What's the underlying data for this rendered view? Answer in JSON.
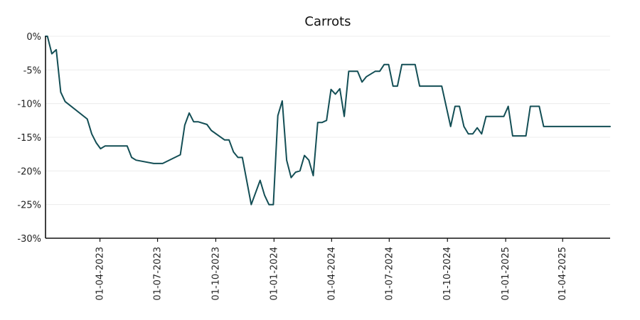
{
  "chart_data": {
    "type": "line",
    "title": "Carrots",
    "xlabel": "",
    "ylabel": "",
    "x_axis": {
      "type": "date",
      "range": [
        "2023-01-05",
        "2025-06-15"
      ],
      "ticks": [
        "2023-04-01",
        "2023-07-01",
        "2023-10-01",
        "2024-01-01",
        "2024-04-01",
        "2024-07-01",
        "2024-10-01",
        "2025-01-01",
        "2025-04-01"
      ],
      "tick_labels": [
        "01-04-2023",
        "01-07-2023",
        "01-10-2023",
        "01-01-2024",
        "01-04-2024",
        "01-07-2024",
        "01-10-2024",
        "01-01-2025",
        "01-04-2025"
      ]
    },
    "y_axis": {
      "range": [
        -30,
        0
      ],
      "ticks": [
        0,
        -5,
        -10,
        -15,
        -20,
        -25,
        -30
      ],
      "tick_labels": [
        "0%",
        "-5%",
        "-10%",
        "-15%",
        "-20%",
        "-25%",
        "-30%"
      ]
    },
    "grid": "horizontal",
    "legend": "none",
    "series": [
      {
        "color": "#134e55",
        "points": [
          [
            "2023-01-05",
            0.0
          ],
          [
            "2023-01-08",
            0.0
          ],
          [
            "2023-01-15",
            -2.6
          ],
          [
            "2023-01-22",
            -2.0
          ],
          [
            "2023-01-29",
            -8.3
          ],
          [
            "2023-02-05",
            -9.7
          ],
          [
            "2023-03-12",
            -12.3
          ],
          [
            "2023-03-19",
            -14.5
          ],
          [
            "2023-03-26",
            -15.8
          ],
          [
            "2023-04-02",
            -16.7
          ],
          [
            "2023-04-09",
            -16.3
          ],
          [
            "2023-05-14",
            -16.3
          ],
          [
            "2023-05-21",
            -18.0
          ],
          [
            "2023-05-28",
            -18.4
          ],
          [
            "2023-06-25",
            -18.9
          ],
          [
            "2023-07-09",
            -18.9
          ],
          [
            "2023-08-06",
            -17.6
          ],
          [
            "2023-08-13",
            -13.2
          ],
          [
            "2023-08-20",
            -11.4
          ],
          [
            "2023-08-27",
            -12.7
          ],
          [
            "2023-09-03",
            -12.7
          ],
          [
            "2023-09-17",
            -13.1
          ],
          [
            "2023-09-24",
            -14.0
          ],
          [
            "2023-10-15",
            -15.4
          ],
          [
            "2023-10-22",
            -15.4
          ],
          [
            "2023-10-29",
            -17.2
          ],
          [
            "2023-11-05",
            -18.0
          ],
          [
            "2023-11-12",
            -18.0
          ],
          [
            "2023-11-26",
            -25.0
          ],
          [
            "2023-12-10",
            -21.4
          ],
          [
            "2023-12-17",
            -23.6
          ],
          [
            "2023-12-24",
            -25.0
          ],
          [
            "2023-12-31",
            -25.0
          ],
          [
            "2024-01-07",
            -11.8
          ],
          [
            "2024-01-14",
            -9.6
          ],
          [
            "2024-01-21",
            -18.4
          ],
          [
            "2024-01-28",
            -21.0
          ],
          [
            "2024-02-04",
            -20.2
          ],
          [
            "2024-02-11",
            -20.0
          ],
          [
            "2024-02-18",
            -17.7
          ],
          [
            "2024-02-25",
            -18.4
          ],
          [
            "2024-03-03",
            -20.7
          ],
          [
            "2024-03-10",
            -12.8
          ],
          [
            "2024-03-17",
            -12.8
          ],
          [
            "2024-03-24",
            -12.5
          ],
          [
            "2024-03-31",
            -7.9
          ],
          [
            "2024-04-07",
            -8.6
          ],
          [
            "2024-04-14",
            -7.8
          ],
          [
            "2024-04-21",
            -11.9
          ],
          [
            "2024-04-28",
            -5.2
          ],
          [
            "2024-05-12",
            -5.2
          ],
          [
            "2024-05-19",
            -6.8
          ],
          [
            "2024-05-26",
            -6.0
          ],
          [
            "2024-06-09",
            -5.2
          ],
          [
            "2024-06-16",
            -5.2
          ],
          [
            "2024-06-23",
            -4.2
          ],
          [
            "2024-06-30",
            -4.2
          ],
          [
            "2024-07-07",
            -7.4
          ],
          [
            "2024-07-14",
            -7.4
          ],
          [
            "2024-07-21",
            -4.2
          ],
          [
            "2024-08-11",
            -4.2
          ],
          [
            "2024-08-18",
            -7.4
          ],
          [
            "2024-09-22",
            -7.4
          ],
          [
            "2024-10-06",
            -13.4
          ],
          [
            "2024-10-13",
            -10.4
          ],
          [
            "2024-10-20",
            -10.4
          ],
          [
            "2024-10-27",
            -13.4
          ],
          [
            "2024-11-03",
            -14.5
          ],
          [
            "2024-11-10",
            -14.5
          ],
          [
            "2024-11-17",
            -13.6
          ],
          [
            "2024-11-24",
            -14.5
          ],
          [
            "2024-12-01",
            -11.9
          ],
          [
            "2024-12-29",
            -11.9
          ],
          [
            "2025-01-05",
            -10.4
          ],
          [
            "2025-01-12",
            -14.8
          ],
          [
            "2025-02-02",
            -14.8
          ],
          [
            "2025-02-09",
            -10.4
          ],
          [
            "2025-02-23",
            -10.4
          ],
          [
            "2025-03-02",
            -13.4
          ],
          [
            "2025-06-15",
            -13.4
          ]
        ]
      }
    ]
  }
}
